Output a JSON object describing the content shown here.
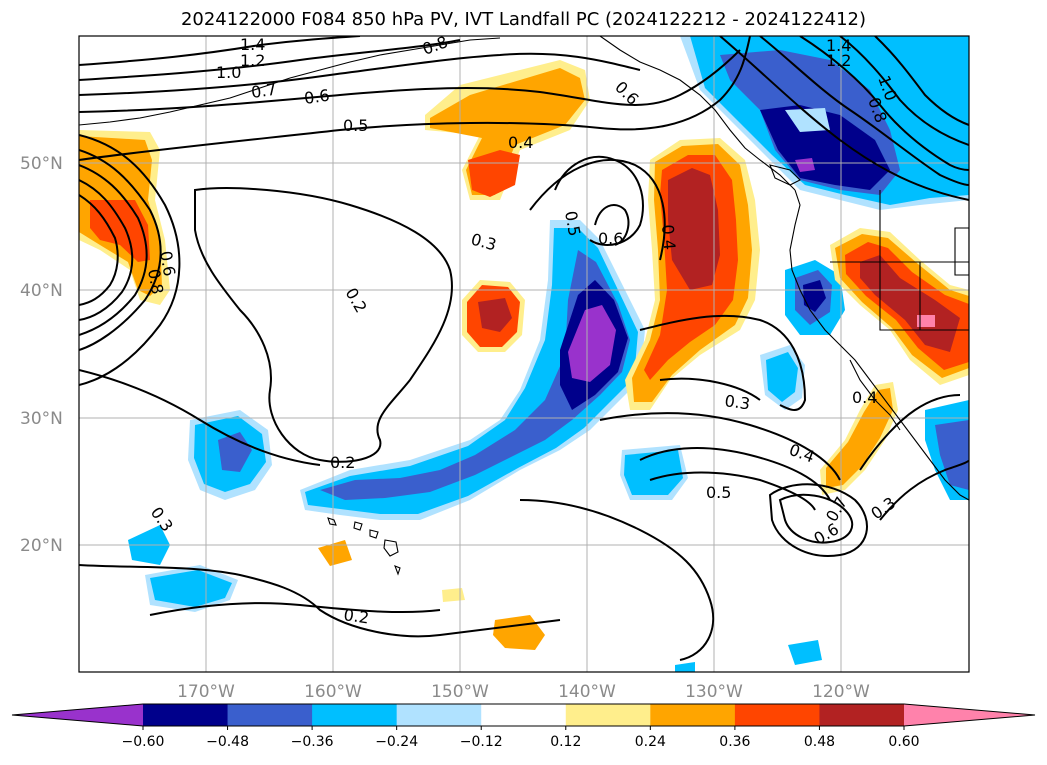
{
  "title": "2024122000 F084 850 hPa PV, IVT Landfall PC (2024122212 - 2024122412)",
  "lat_ticks": [
    "50°N",
    "40°N",
    "30°N",
    "20°N"
  ],
  "lon_ticks": [
    "170°W",
    "160°W",
    "150°W",
    "140°W",
    "130°W",
    "120°W"
  ],
  "colorbar": {
    "colors": [
      "#9932cc",
      "#00008b",
      "#3a5fcd",
      "#00bfff",
      "#b0e2ff",
      "#ffffff",
      "#ffee8c",
      "#ffa500",
      "#ff4500",
      "#b22222",
      "#ff82ab"
    ],
    "tick_labels": [
      "−0.60",
      "−0.48",
      "−0.36",
      "−0.24",
      "−0.12",
      "0.12",
      "0.24",
      "0.36",
      "0.48",
      "0.60"
    ]
  },
  "contour_labels": [
    "1.4",
    "1.2",
    "1.0",
    "0.8",
    "0.7",
    "0.6",
    "0.5",
    "0.4",
    "0.3",
    "0.2",
    "0.5",
    "0.6",
    "0.4",
    "0.3",
    "0.2",
    "0.3",
    "0.4",
    "0.5",
    "0.6",
    "0.4",
    "0.3",
    "0.8",
    "0.6",
    "1.4",
    "1.2",
    "1.0",
    "0.8",
    "0.2",
    "0.6",
    "0.7"
  ]
}
